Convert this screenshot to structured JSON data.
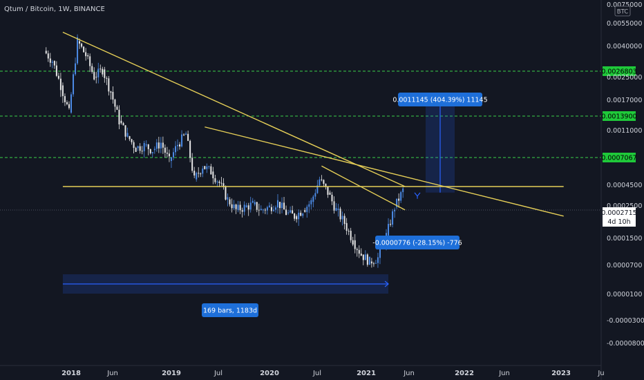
{
  "header": {
    "title": "Qtum / Bitcoin, 1W, BINANCE",
    "currency_badge": "BTC"
  },
  "colors": {
    "background": "#131722",
    "candle_up": "#4c8be6",
    "candle_down": "#e8e8e8",
    "trendline": "#e6cf57",
    "level_line": "#3bd14a",
    "level_label_bg": "#1fc93a",
    "measure_box": "#2962ff",
    "measure_label_bg": "#1e6fd9",
    "axis_text": "#d1d4dc"
  },
  "chart_data": {
    "type": "candlestick",
    "title": "Qtum / Bitcoin, 1W, BINANCE",
    "x_axis": {
      "ticks": [
        "2018",
        "Jun",
        "2019",
        "Jul",
        "2020",
        "Jul",
        "2021",
        "Jun",
        "2022",
        "Jun",
        "2023",
        "Ju"
      ],
      "range": [
        "2017-09",
        "2023-07"
      ]
    },
    "y_axis": {
      "scale": "log",
      "ticks": [
        "0.0075000",
        "0.0055000",
        "0.0040000",
        "0.0025000",
        "0.0017000",
        "0.0011000",
        "0.0004500",
        "0.0002500",
        "0.0001500",
        "0.0000700",
        "0.0000100",
        "-0.0000300",
        "-0.0000800"
      ],
      "current_price": "0.0002715",
      "countdown": "4d 10h"
    },
    "series": [
      {
        "x": [
          "2017-10",
          "2017-11",
          "2017-12",
          "2018-01",
          "2018-02",
          "2018-03",
          "2018-04",
          "2018-05",
          "2018-06",
          "2018-07",
          "2018-08",
          "2018-09",
          "2018-10",
          "2018-11",
          "2018-12",
          "2019-01",
          "2019-02",
          "2019-03",
          "2019-04",
          "2019-05",
          "2019-06",
          "2019-07",
          "2019-08",
          "2019-09",
          "2019-10",
          "2019-11",
          "2019-12",
          "2020-01",
          "2020-02",
          "2020-03",
          "2020-04",
          "2020-05",
          "2020-06",
          "2020-07",
          "2020-08",
          "2020-09",
          "2020-10",
          "2020-11",
          "2020-12",
          "2021-01",
          "2021-02",
          "2021-03",
          "2021-04"
        ],
        "close": [
          0.0028,
          0.0018,
          0.0011,
          0.004,
          0.0031,
          0.0021,
          0.0024,
          0.0016,
          0.00095,
          0.00072,
          0.00058,
          0.00061,
          0.00056,
          0.00064,
          0.00046,
          0.00062,
          0.00075,
          0.00033,
          0.00042,
          0.00038,
          0.00031,
          0.00023,
          0.00019,
          0.0002,
          0.00021,
          0.00019,
          0.0002,
          0.00022,
          0.00018,
          0.00017,
          0.00019,
          0.00022,
          0.00033,
          0.00026,
          0.00019,
          0.00015,
          0.00011,
          8.5e-05,
          7.5e-05,
          8e-05,
          0.00012,
          0.0002,
          0.00027
        ]
      }
    ],
    "horizontal_levels": [
      "0.0026803",
      "0.0013900",
      "0.0007067"
    ],
    "trendlines": [
      {
        "from": [
          "2017-12",
          0.0047
        ],
        "to": [
          "2021-05",
          0.00029
        ]
      },
      {
        "from": [
          "2019-05",
          0.00085
        ],
        "to": [
          "2022-12",
          0.00017
        ]
      },
      {
        "from": [
          "2020-07",
          0.00042
        ],
        "to": [
          "2021-05",
          0.00019
        ]
      },
      {
        "from": [
          "2017-12",
          0.00029
        ],
        "to": [
          "2022-12",
          0.00029
        ]
      }
    ],
    "measurements": [
      {
        "label": "0.0011145 (404.39%) 11145",
        "direction": "up",
        "from": 0.00026,
        "to": 0.00139
      },
      {
        "label": "-0.0000776 (-28.15%) -776",
        "direction": "down",
        "from": 0.00027,
        "to": 0.00019
      },
      {
        "label": "169 bars, 1183d",
        "direction": "horizontal",
        "from": "2017-12",
        "to": "2021-03"
      }
    ]
  }
}
